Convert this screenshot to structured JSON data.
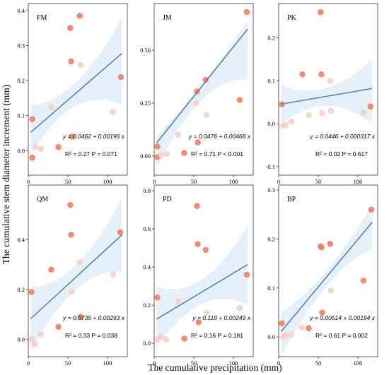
{
  "figure": {
    "xlabel": "The cumulative precipitation (mm)",
    "ylabel": "The cumulative stem diameter increment (mm)"
  },
  "colors": {
    "point_dark": "#ee7f66",
    "point_light": "#f6cdc4",
    "band": "#e6f0fb",
    "line": "#4c7fa6",
    "axis": "#333333"
  },
  "chart_data": [
    {
      "type": "scatter",
      "panel": "FM",
      "xlim": [
        0,
        125
      ],
      "ylim": [
        -0.07,
        0.42
      ],
      "xticks": [
        0,
        50,
        100
      ],
      "xtick_labels": [
        "0",
        "50",
        "100"
      ],
      "yticks": [
        0.0,
        0.1,
        0.2,
        0.3,
        0.4
      ],
      "ytick_labels": [
        "0.0",
        "0.1",
        "0.2",
        "0.3",
        "0.4"
      ],
      "equation": "y = 0.0462 + 0.00196 x",
      "stats": {
        "r2": "R² = 0.27",
        "p": "P = 0.071"
      },
      "band": {
        "lower": [
          -0.01,
          0.13
        ],
        "upper": [
          0.13,
          0.38
        ]
      },
      "fit": {
        "intercept": 0.0462,
        "slope": 0.00196
      },
      "points": [
        {
          "x": 5,
          "y": 0.09,
          "s": "dark"
        },
        {
          "x": 5,
          "y": -0.02,
          "s": "dark"
        },
        {
          "x": 9,
          "y": 0.01,
          "s": "light"
        },
        {
          "x": 16,
          "y": 0.005,
          "s": "light"
        },
        {
          "x": 29,
          "y": 0.125,
          "s": "light"
        },
        {
          "x": 38,
          "y": 0.01,
          "s": "dark"
        },
        {
          "x": 53,
          "y": 0.35,
          "s": "dark"
        },
        {
          "x": 54,
          "y": 0.255,
          "s": "dark"
        },
        {
          "x": 55,
          "y": 0.04,
          "s": "dark"
        },
        {
          "x": 65,
          "y": 0.385,
          "s": "dark"
        },
        {
          "x": 66,
          "y": 0.245,
          "s": "light"
        },
        {
          "x": 107,
          "y": 0.11,
          "s": "light"
        },
        {
          "x": 117,
          "y": 0.21,
          "s": "dark"
        }
      ]
    },
    {
      "type": "scatter",
      "panel": "JM",
      "xlim": [
        0,
        125
      ],
      "ylim": [
        -0.09,
        0.72
      ],
      "xticks": [
        0,
        50,
        100
      ],
      "xtick_labels": [
        "0",
        "50",
        "100"
      ],
      "yticks": [
        0.0,
        0.25,
        0.5
      ],
      "ytick_labels": [
        "0.00",
        "0.25",
        "0.50"
      ],
      "equation": "y = 0.0476 + 0.00468 x",
      "stats": {
        "r2": "R² = 0.71",
        "p": "P < 0.001"
      },
      "band": {
        "lower": [
          -0.06,
          0.36
        ],
        "upper": [
          0.09,
          0.64
        ]
      },
      "fit": {
        "intercept": 0.0476,
        "slope": 0.00468
      },
      "points": [
        {
          "x": 4,
          "y": 0.045,
          "s": "dark"
        },
        {
          "x": 4,
          "y": -0.005,
          "s": "dark"
        },
        {
          "x": 9,
          "y": 0.005,
          "s": "light"
        },
        {
          "x": 16,
          "y": 0.01,
          "s": "light"
        },
        {
          "x": 30,
          "y": 0.1,
          "s": "light"
        },
        {
          "x": 38,
          "y": 0.015,
          "s": "dark"
        },
        {
          "x": 53,
          "y": 0.25,
          "s": "light"
        },
        {
          "x": 54,
          "y": 0.305,
          "s": "dark"
        },
        {
          "x": 55,
          "y": 0.065,
          "s": "dark"
        },
        {
          "x": 65,
          "y": 0.36,
          "s": "dark"
        },
        {
          "x": 66,
          "y": 0.195,
          "s": "light"
        },
        {
          "x": 108,
          "y": 0.265,
          "s": "dark"
        },
        {
          "x": 117,
          "y": 0.68,
          "s": "dark"
        }
      ]
    },
    {
      "type": "scatter",
      "panel": "PK",
      "xlim": [
        0,
        125
      ],
      "ylim": [
        -0.12,
        0.28
      ],
      "xticks": [
        0,
        50,
        100
      ],
      "xtick_labels": [
        "0",
        "50",
        "100"
      ],
      "yticks": [
        -0.1,
        0.0,
        0.1,
        0.2
      ],
      "ytick_labels": [
        "-0.1",
        "0.0",
        "0.1",
        "0.2"
      ],
      "equation": "y = 0.0446 + 0.000317 x",
      "stats": {
        "r2": "R² = 0.02",
        "p": "P = 0.617"
      },
      "band": {
        "lower": [
          0.0,
          0.0
        ],
        "upper": [
          0.09,
          0.15
        ]
      },
      "fit": {
        "intercept": 0.0446,
        "slope": 0.000317
      },
      "points": [
        {
          "x": 4,
          "y": 0.045,
          "s": "dark"
        },
        {
          "x": 5,
          "y": -0.005,
          "s": "light"
        },
        {
          "x": 9,
          "y": -0.003,
          "s": "light"
        },
        {
          "x": 16,
          "y": 0.005,
          "s": "light"
        },
        {
          "x": 30,
          "y": 0.115,
          "s": "dark"
        },
        {
          "x": 38,
          "y": 0.02,
          "s": "light"
        },
        {
          "x": 53,
          "y": 0.26,
          "s": "dark"
        },
        {
          "x": 54,
          "y": 0.115,
          "s": "dark"
        },
        {
          "x": 55,
          "y": 0.025,
          "s": "light"
        },
        {
          "x": 65,
          "y": 0.1,
          "s": "light"
        },
        {
          "x": 66,
          "y": 0.03,
          "s": "light"
        },
        {
          "x": 107,
          "y": 0.025,
          "s": "light"
        },
        {
          "x": 116,
          "y": 0.04,
          "s": "dark"
        }
      ]
    },
    {
      "type": "scatter",
      "panel": "QM",
      "xlim": [
        0,
        125
      ],
      "ylim": [
        -0.07,
        0.62
      ],
      "xticks": [
        0,
        50,
        100
      ],
      "xtick_labels": [
        "0",
        "50",
        "100"
      ],
      "yticks": [
        0.0,
        0.2,
        0.4
      ],
      "ytick_labels": [
        "0.0",
        "0.2",
        "0.4"
      ],
      "equation": "y = 0.0735 + 0.00293 x",
      "stats": {
        "r2": "R² = 0.33",
        "p": "P = 0.038"
      },
      "band": {
        "lower": [
          -0.05,
          0.27
        ],
        "upper": [
          0.21,
          0.57
        ]
      },
      "fit": {
        "intercept": 0.0735,
        "slope": 0.00293
      },
      "points": [
        {
          "x": 4,
          "y": 0.19,
          "s": "dark"
        },
        {
          "x": 4,
          "y": 0.0,
          "s": "light"
        },
        {
          "x": 8,
          "y": -0.02,
          "s": "light"
        },
        {
          "x": 16,
          "y": 0.02,
          "s": "light"
        },
        {
          "x": 29,
          "y": 0.28,
          "s": "dark"
        },
        {
          "x": 38,
          "y": 0.05,
          "s": "dark"
        },
        {
          "x": 53,
          "y": 0.54,
          "s": "dark"
        },
        {
          "x": 54,
          "y": 0.42,
          "s": "dark"
        },
        {
          "x": 55,
          "y": 0.19,
          "s": "light"
        },
        {
          "x": 65,
          "y": 0.31,
          "s": "light"
        },
        {
          "x": 66,
          "y": 0.09,
          "s": "dark"
        },
        {
          "x": 107,
          "y": 0.26,
          "s": "light"
        },
        {
          "x": 116,
          "y": 0.43,
          "s": "dark"
        }
      ]
    },
    {
      "type": "scatter",
      "panel": "PD",
      "xlim": [
        0,
        125
      ],
      "ylim": [
        -0.07,
        0.83
      ],
      "xticks": [
        0,
        50,
        100
      ],
      "xtick_labels": [
        "0",
        "50",
        "100"
      ],
      "yticks": [
        0.0,
        0.2,
        0.4,
        0.6,
        0.8
      ],
      "ytick_labels": [
        "0.0",
        "0.2",
        "0.4",
        "0.6",
        "0.8"
      ],
      "equation": "y = 0.119 + 0.00249 x",
      "stats": {
        "r2": "R² = 0.16",
        "p": "P = 0.181"
      },
      "band": {
        "lower": [
          -0.02,
          0.2
        ],
        "upper": [
          0.3,
          0.62
        ]
      },
      "fit": {
        "intercept": 0.119,
        "slope": 0.00249
      },
      "points": [
        {
          "x": 4,
          "y": 0.24,
          "s": "dark"
        },
        {
          "x": 4,
          "y": 0.02,
          "s": "light"
        },
        {
          "x": 8,
          "y": 0.035,
          "s": "light"
        },
        {
          "x": 15,
          "y": 0.02,
          "s": "light"
        },
        {
          "x": 30,
          "y": 0.22,
          "s": "light"
        },
        {
          "x": 38,
          "y": 0.025,
          "s": "dark"
        },
        {
          "x": 54,
          "y": 0.72,
          "s": "dark"
        },
        {
          "x": 55,
          "y": 0.52,
          "s": "dark"
        },
        {
          "x": 56,
          "y": 0.11,
          "s": "dark"
        },
        {
          "x": 65,
          "y": 0.49,
          "s": "dark"
        },
        {
          "x": 66,
          "y": 0.16,
          "s": "light"
        },
        {
          "x": 108,
          "y": 0.185,
          "s": "light"
        },
        {
          "x": 117,
          "y": 0.36,
          "s": "dark"
        }
      ]
    },
    {
      "type": "scatter",
      "panel": "BP",
      "xlim": [
        0,
        125
      ],
      "ylim": [
        -0.04,
        0.31
      ],
      "xticks": [
        0,
        50,
        100
      ],
      "xtick_labels": [
        "0",
        "50",
        "100"
      ],
      "yticks": [
        0.0,
        0.1,
        0.2,
        0.3
      ],
      "ytick_labels": [
        "0.0",
        "0.1",
        "0.2",
        "0.3"
      ],
      "equation": "y = 0.00514 + 0.00194 x",
      "stats": {
        "r2": "R² = 0.61",
        "p": "P = 0.002"
      },
      "band": {
        "lower": [
          -0.04,
          0.18
        ],
        "upper": [
          0.05,
          0.27
        ]
      },
      "fit": {
        "intercept": 0.00514,
        "slope": 0.00194
      },
      "points": [
        {
          "x": 4,
          "y": 0.028,
          "s": "dark"
        },
        {
          "x": 5,
          "y": 0.0,
          "s": "light"
        },
        {
          "x": 9,
          "y": 0.003,
          "s": "light"
        },
        {
          "x": 16,
          "y": 0.005,
          "s": "light"
        },
        {
          "x": 29,
          "y": 0.02,
          "s": "light"
        },
        {
          "x": 38,
          "y": 0.018,
          "s": "dark"
        },
        {
          "x": 53,
          "y": 0.185,
          "s": "dark"
        },
        {
          "x": 54,
          "y": 0.183,
          "s": "dark"
        },
        {
          "x": 55,
          "y": 0.05,
          "s": "dark"
        },
        {
          "x": 65,
          "y": 0.19,
          "s": "dark"
        },
        {
          "x": 66,
          "y": 0.095,
          "s": "light"
        },
        {
          "x": 107,
          "y": 0.115,
          "s": "dark"
        },
        {
          "x": 117,
          "y": 0.26,
          "s": "dark"
        }
      ]
    }
  ]
}
